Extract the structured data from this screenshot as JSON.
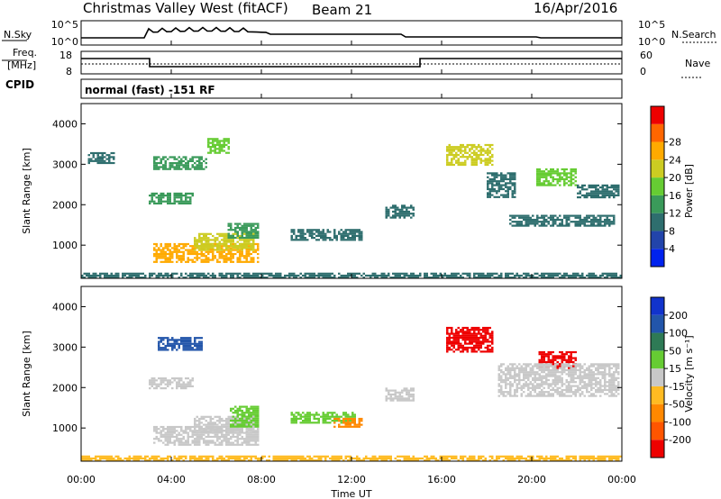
{
  "header": {
    "title": "Christmas Valley West (fitACF)",
    "beam": "Beam 21",
    "date": "16/Apr/2016",
    "nsky_label": "N.Sky",
    "nsearch_label": "N.Search",
    "freq_label_1": "Freq.",
    "freq_label_2": "[MHz]",
    "nave_label": "Nave",
    "cpid_label": "CPID",
    "cpid_value": "normal (fast) -151 RF",
    "noise_ticks_left": [
      "10^5",
      "10^0"
    ],
    "noise_ticks_right": [
      "10^5",
      "10^0"
    ],
    "freq_ticks_left": [
      "18",
      "8"
    ],
    "freq_ticks_right": [
      "60",
      "0"
    ]
  },
  "axes": {
    "xlabel": "Time UT",
    "ylabel": "Slant Range [km]",
    "x_ticks": [
      "00:00",
      "04:00",
      "08:00",
      "12:00",
      "16:00",
      "20:00",
      "00:00"
    ],
    "y_ticks": [
      "1000",
      "2000",
      "3000",
      "4000"
    ]
  },
  "colorbars": {
    "power": {
      "label": "Power [dB]",
      "ticks": [
        "4",
        "8",
        "12",
        "16",
        "20",
        "24",
        "28"
      ],
      "colors": [
        "#0022ee",
        "#2244aa",
        "#2e6e6e",
        "#3a9a5a",
        "#66cc33",
        "#cccc22",
        "#ffaa00",
        "#ff6600",
        "#ee0000"
      ]
    },
    "velocity": {
      "label": "Velocity [m s⁻¹]",
      "ticks": [
        "200",
        "100",
        "50",
        "15",
        "-15",
        "-50",
        "-100",
        "-200"
      ],
      "colors": [
        "#1133cc",
        "#2255aa",
        "#2e7a55",
        "#66cc33",
        "#c8c8c8",
        "#ffbb22",
        "#ff8800",
        "#ff5500",
        "#ee0000"
      ]
    }
  },
  "chart_data": [
    {
      "type": "heatmap",
      "panel": "power",
      "x_range_hours": [
        0,
        24
      ],
      "y_range_km": [
        180,
        4500
      ],
      "cells": [
        {
          "t0": 3.2,
          "t1": 7.9,
          "r0": 600,
          "r1": 1050,
          "v": 26
        },
        {
          "t0": 5.0,
          "t1": 7.7,
          "r0": 900,
          "r1": 1300,
          "v": 22
        },
        {
          "t0": 6.5,
          "t1": 7.9,
          "r0": 1200,
          "r1": 1550,
          "v": 14
        },
        {
          "t0": 3.0,
          "t1": 5.0,
          "r0": 2050,
          "r1": 2300,
          "v": 12
        },
        {
          "t0": 3.2,
          "t1": 5.6,
          "r0": 2900,
          "r1": 3200,
          "v": 14
        },
        {
          "t0": 5.6,
          "t1": 6.6,
          "r0": 3300,
          "r1": 3650,
          "v": 16
        },
        {
          "t0": 0.3,
          "t1": 1.5,
          "r0": 3050,
          "r1": 3300,
          "v": 10
        },
        {
          "t0": 9.3,
          "t1": 12.4,
          "r0": 1150,
          "r1": 1400,
          "v": 9
        },
        {
          "t0": 13.5,
          "t1": 14.8,
          "r0": 1700,
          "r1": 2000,
          "v": 8
        },
        {
          "t0": 16.2,
          "t1": 18.3,
          "r0": 3000,
          "r1": 3500,
          "v": 22
        },
        {
          "t0": 18.0,
          "t1": 19.3,
          "r0": 2200,
          "r1": 2800,
          "v": 11
        },
        {
          "t0": 19.0,
          "t1": 23.7,
          "r0": 1500,
          "r1": 1750,
          "v": 8
        },
        {
          "t0": 20.2,
          "t1": 22.0,
          "r0": 2500,
          "r1": 2900,
          "v": 16
        },
        {
          "t0": 22.0,
          "t1": 23.9,
          "r0": 2200,
          "r1": 2500,
          "v": 9
        },
        {
          "t0": 0.0,
          "t1": 24.0,
          "r0": 180,
          "r1": 320,
          "v": 10
        }
      ]
    },
    {
      "type": "heatmap",
      "panel": "velocity",
      "x_range_hours": [
        0,
        24
      ],
      "y_range_km": [
        180,
        4500
      ],
      "cells": [
        {
          "t0": 3.2,
          "t1": 7.9,
          "r0": 600,
          "r1": 1050,
          "v": 0
        },
        {
          "t0": 5.0,
          "t1": 7.7,
          "r0": 900,
          "r1": 1300,
          "v": 0
        },
        {
          "t0": 6.6,
          "t1": 7.9,
          "r0": 1050,
          "r1": 1550,
          "v": 40
        },
        {
          "t0": 3.0,
          "t1": 5.0,
          "r0": 2000,
          "r1": 2250,
          "v": 0
        },
        {
          "t0": 3.4,
          "t1": 5.4,
          "r0": 2950,
          "r1": 3250,
          "v": 150
        },
        {
          "t0": 9.3,
          "t1": 12.2,
          "r0": 1150,
          "r1": 1400,
          "v": 25
        },
        {
          "t0": 11.2,
          "t1": 12.4,
          "r0": 1050,
          "r1": 1250,
          "v": -80
        },
        {
          "t0": 13.5,
          "t1": 14.8,
          "r0": 1700,
          "r1": 2000,
          "v": 0
        },
        {
          "t0": 16.2,
          "t1": 18.3,
          "r0": 2900,
          "r1": 3500,
          "v": -220
        },
        {
          "t0": 20.3,
          "t1": 22.0,
          "r0": 2500,
          "r1": 2900,
          "v": -220
        },
        {
          "t0": 18.5,
          "t1": 23.9,
          "r0": 1800,
          "r1": 2600,
          "v": 0
        },
        {
          "t0": 0.0,
          "t1": 24.0,
          "r0": 180,
          "r1": 320,
          "v": -20
        }
      ]
    }
  ]
}
